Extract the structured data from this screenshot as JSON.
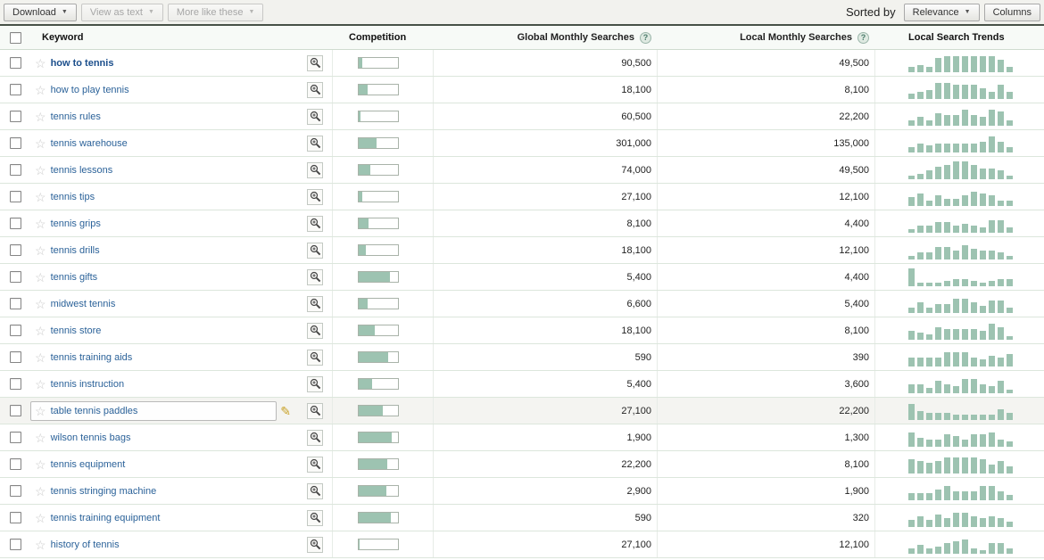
{
  "toolbar": {
    "download_label": "Download",
    "view_as_text_label": "View as text",
    "more_like_these_label": "More like these",
    "sorted_by_label": "Sorted by",
    "sort_value": "Relevance",
    "columns_label": "Columns"
  },
  "icons": {
    "caret_glyph": "▼",
    "star_glyph": "☆",
    "pencil_glyph": "✎",
    "help_glyph": "?"
  },
  "colors": {
    "accent_green": "#9dc3b1",
    "link_blue": "#2b6299",
    "toolbar_dark_line": "#475147",
    "row_border": "#dce6dc"
  },
  "table": {
    "headers": {
      "keyword": "Keyword",
      "competition": "Competition",
      "global": "Global Monthly Searches",
      "local": "Local Monthly Searches",
      "trends": "Local Search Trends"
    },
    "rows": [
      {
        "keyword": "how to tennis",
        "bold": true,
        "competition": 0.1,
        "global": "90,500",
        "local": "49,500",
        "trend": [
          3,
          4,
          3,
          8,
          9,
          9,
          9,
          9,
          9,
          9,
          7,
          3
        ]
      },
      {
        "keyword": "how to play tennis",
        "competition": 0.22,
        "global": "18,100",
        "local": "8,100",
        "trend": [
          3,
          4,
          5,
          9,
          9,
          8,
          8,
          8,
          6,
          4,
          8,
          4
        ]
      },
      {
        "keyword": "tennis rules",
        "competition": 0.05,
        "global": "60,500",
        "local": "22,200",
        "trend": [
          3,
          5,
          3,
          7,
          6,
          6,
          9,
          6,
          5,
          9,
          8,
          3
        ]
      },
      {
        "keyword": "tennis warehouse",
        "competition": 0.45,
        "global": "301,000",
        "local": "135,000",
        "trend": [
          3,
          5,
          4,
          5,
          5,
          5,
          5,
          5,
          6,
          9,
          6,
          3
        ]
      },
      {
        "keyword": "tennis lessons",
        "competition": 0.3,
        "global": "74,000",
        "local": "49,500",
        "trend": [
          2,
          3,
          5,
          7,
          8,
          10,
          10,
          8,
          6,
          6,
          5,
          2
        ]
      },
      {
        "keyword": "tennis tips",
        "competition": 0.08,
        "global": "27,100",
        "local": "12,100",
        "trend": [
          5,
          7,
          3,
          6,
          4,
          4,
          6,
          8,
          7,
          6,
          3,
          3
        ]
      },
      {
        "keyword": "tennis grips",
        "competition": 0.25,
        "global": "8,100",
        "local": "4,400",
        "trend": [
          2,
          4,
          4,
          6,
          6,
          4,
          5,
          4,
          3,
          7,
          7,
          3
        ]
      },
      {
        "keyword": "tennis drills",
        "competition": 0.18,
        "global": "18,100",
        "local": "12,100",
        "trend": [
          2,
          4,
          4,
          7,
          7,
          5,
          8,
          6,
          5,
          5,
          4,
          2
        ]
      },
      {
        "keyword": "tennis gifts",
        "competition": 0.8,
        "global": "5,400",
        "local": "4,400",
        "trend": [
          10,
          2,
          2,
          2,
          3,
          4,
          4,
          3,
          2,
          3,
          4,
          4
        ]
      },
      {
        "keyword": "midwest tennis",
        "competition": 0.22,
        "global": "6,600",
        "local": "5,400",
        "trend": [
          3,
          6,
          3,
          5,
          5,
          8,
          8,
          6,
          4,
          7,
          7,
          3
        ]
      },
      {
        "keyword": "tennis store",
        "competition": 0.42,
        "global": "18,100",
        "local": "8,100",
        "trend": [
          5,
          4,
          3,
          7,
          6,
          6,
          6,
          6,
          5,
          9,
          7,
          2
        ]
      },
      {
        "keyword": "tennis training aids",
        "competition": 0.75,
        "global": "590",
        "local": "390",
        "trend": [
          5,
          5,
          5,
          5,
          8,
          8,
          8,
          5,
          4,
          6,
          5,
          7
        ]
      },
      {
        "keyword": "tennis instruction",
        "competition": 0.35,
        "global": "5,400",
        "local": "3,600",
        "trend": [
          5,
          5,
          3,
          7,
          5,
          4,
          8,
          8,
          5,
          4,
          7,
          2
        ]
      },
      {
        "keyword": "table tennis paddles",
        "editing": true,
        "competition": 0.62,
        "global": "27,100",
        "local": "22,200",
        "trend": [
          9,
          5,
          4,
          4,
          4,
          3,
          3,
          3,
          3,
          3,
          6,
          4
        ]
      },
      {
        "keyword": "wilson tennis bags",
        "competition": 0.85,
        "global": "1,900",
        "local": "1,300",
        "trend": [
          8,
          5,
          4,
          4,
          7,
          6,
          4,
          7,
          7,
          8,
          4,
          3
        ]
      },
      {
        "keyword": "tennis equipment",
        "competition": 0.72,
        "global": "22,200",
        "local": "8,100",
        "trend": [
          8,
          7,
          6,
          7,
          9,
          9,
          9,
          9,
          8,
          5,
          7,
          4
        ]
      },
      {
        "keyword": "tennis stringing machine",
        "competition": 0.7,
        "global": "2,900",
        "local": "1,900",
        "trend": [
          4,
          4,
          4,
          6,
          8,
          5,
          5,
          5,
          8,
          8,
          5,
          3
        ]
      },
      {
        "keyword": "tennis training equipment",
        "competition": 0.82,
        "global": "590",
        "local": "320",
        "trend": [
          4,
          6,
          4,
          7,
          5,
          8,
          8,
          6,
          5,
          6,
          5,
          3
        ]
      },
      {
        "keyword": "history of tennis",
        "competition": 0.02,
        "global": "27,100",
        "local": "12,100",
        "trend": [
          3,
          5,
          3,
          4,
          6,
          7,
          8,
          3,
          2,
          6,
          6,
          3
        ]
      }
    ]
  }
}
